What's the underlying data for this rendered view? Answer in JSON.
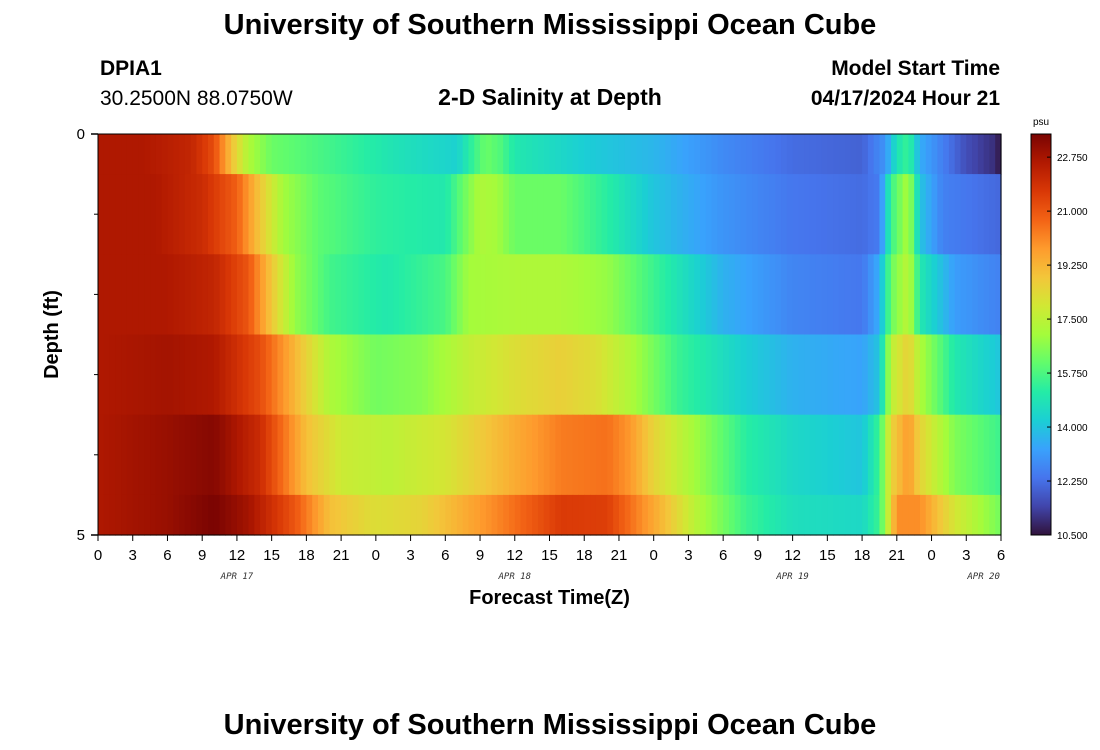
{
  "header": {
    "title": "University of Southern Mississippi Ocean Cube",
    "station_id": "DPIA1",
    "station_coords": "30.2500N  88.0750W",
    "subtitle": "2-D Salinity at Depth",
    "model_start_label": "Model Start Time",
    "model_start_value": "04/17/2024 Hour 21"
  },
  "footer": {
    "title": "University of Southern Mississippi Ocean Cube"
  },
  "chart_data": {
    "type": "heatmap",
    "title": "2-D Salinity at Depth",
    "xlabel": "Forecast Time(Z)",
    "ylabel": "Depth (ft)",
    "x_ticks": [
      "0",
      "3",
      "6",
      "9",
      "12",
      "15",
      "18",
      "21",
      "0",
      "3",
      "6",
      "9",
      "12",
      "15",
      "18",
      "21",
      "0",
      "3",
      "6",
      "9",
      "12",
      "15",
      "18",
      "21",
      "0",
      "3",
      "6"
    ],
    "x_dates": [
      {
        "label": "APR 17",
        "tick_index": 4
      },
      {
        "label": "APR 18",
        "tick_index": 12
      },
      {
        "label": "APR 19",
        "tick_index": 20
      },
      {
        "label": "APR 20",
        "tick_index": 25.5
      }
    ],
    "x_range_hours": [
      0,
      78
    ],
    "y_range_ft": [
      0,
      5
    ],
    "y_ticks": [
      "0",
      "5"
    ],
    "y_minor_ticks": [
      1,
      2,
      3,
      4
    ],
    "layers_ft": [
      "0-0.5",
      "0.5-1.5",
      "1.5-2.5",
      "2.5-3.5",
      "3.5-4.5",
      "4.5-5"
    ],
    "colorbar": {
      "unit": "psu",
      "min": 10.5,
      "max": 23.5,
      "labels": [
        "22.750",
        "21.000",
        "19.250",
        "17.500",
        "15.750",
        "14.000",
        "12.250",
        "10.500"
      ],
      "stops": [
        "#30123b",
        "#4145ab",
        "#4675ed",
        "#39a2fc",
        "#1bcfd4",
        "#24eca6",
        "#61fc6c",
        "#a4fc3b",
        "#d1e834",
        "#f3c63a",
        "#fe9b2d",
        "#f36315",
        "#d93806",
        "#b11901",
        "#7a0402"
      ]
    },
    "rows_key_hours": [
      [
        [
          0,
          22.6
        ],
        [
          4,
          22.6
        ],
        [
          8,
          22.2
        ],
        [
          10,
          21.2
        ],
        [
          11.5,
          19.0
        ],
        [
          13,
          17.2
        ],
        [
          15,
          16.2
        ],
        [
          20,
          15.6
        ],
        [
          26,
          14.8
        ],
        [
          31,
          14.3
        ],
        [
          32.5,
          15.5
        ],
        [
          33.5,
          16.2
        ],
        [
          34.8,
          15.8
        ],
        [
          36,
          15.0
        ],
        [
          42,
          14.2
        ],
        [
          48,
          13.7
        ],
        [
          54,
          12.8
        ],
        [
          60,
          12.2
        ],
        [
          66,
          12.0
        ],
        [
          68,
          13.0
        ],
        [
          69,
          14.8
        ],
        [
          70,
          15.5
        ],
        [
          71,
          13.5
        ],
        [
          75,
          11.6
        ],
        [
          77.5,
          11.0
        ],
        [
          78,
          10.5
        ]
      ],
      [
        [
          0,
          22.6
        ],
        [
          5,
          22.6
        ],
        [
          9,
          22.0
        ],
        [
          12,
          20.8
        ],
        [
          14,
          18.8
        ],
        [
          16,
          17.0
        ],
        [
          19,
          16.0
        ],
        [
          24,
          15.3
        ],
        [
          30,
          15.0
        ],
        [
          32,
          16.5
        ],
        [
          33,
          17.2
        ],
        [
          34.5,
          17.0
        ],
        [
          36,
          16.2
        ],
        [
          40,
          16.2
        ],
        [
          44,
          15.2
        ],
        [
          48,
          14.0
        ],
        [
          54,
          13.0
        ],
        [
          60,
          12.4
        ],
        [
          66,
          12.2
        ],
        [
          67.5,
          12.5
        ],
        [
          68.5,
          15.5
        ],
        [
          70,
          17.2
        ],
        [
          71,
          14.0
        ],
        [
          73,
          12.6
        ],
        [
          78,
          12.1
        ]
      ],
      [
        [
          0,
          22.6
        ],
        [
          6,
          22.6
        ],
        [
          10,
          22.2
        ],
        [
          13,
          21.0
        ],
        [
          15,
          18.8
        ],
        [
          17,
          16.8
        ],
        [
          20,
          15.6
        ],
        [
          25,
          15.0
        ],
        [
          30,
          15.7
        ],
        [
          32,
          17.0
        ],
        [
          36,
          17.2
        ],
        [
          40,
          17.2
        ],
        [
          44,
          16.8
        ],
        [
          48,
          15.5
        ],
        [
          54,
          13.6
        ],
        [
          60,
          12.7
        ],
        [
          66,
          12.4
        ],
        [
          67.5,
          13.5
        ],
        [
          68.5,
          16.2
        ],
        [
          70,
          17.5
        ],
        [
          71,
          15.0
        ],
        [
          74,
          13.2
        ],
        [
          78,
          12.6
        ]
      ],
      [
        [
          0,
          22.6
        ],
        [
          6,
          22.8
        ],
        [
          10,
          22.6
        ],
        [
          14,
          21.2
        ],
        [
          17,
          19.2
        ],
        [
          20,
          17.2
        ],
        [
          24,
          16.3
        ],
        [
          28,
          16.6
        ],
        [
          32,
          17.6
        ],
        [
          36,
          18.2
        ],
        [
          40,
          18.6
        ],
        [
          43,
          18.2
        ],
        [
          46,
          17.2
        ],
        [
          50,
          15.5
        ],
        [
          56,
          14.2
        ],
        [
          60,
          13.6
        ],
        [
          66,
          13.3
        ],
        [
          67.5,
          14.0
        ],
        [
          68.5,
          17.5
        ],
        [
          70,
          18.6
        ],
        [
          71,
          17.2
        ],
        [
          74,
          15.0
        ],
        [
          78,
          14.0
        ]
      ],
      [
        [
          0,
          22.6
        ],
        [
          6,
          23.0
        ],
        [
          10,
          23.3
        ],
        [
          14,
          22.0
        ],
        [
          18,
          19.0
        ],
        [
          21,
          17.8
        ],
        [
          25,
          17.5
        ],
        [
          30,
          18.0
        ],
        [
          35,
          19.2
        ],
        [
          40,
          20.3
        ],
        [
          44,
          20.5
        ],
        [
          46,
          19.8
        ],
        [
          48,
          18.5
        ],
        [
          52,
          16.8
        ],
        [
          56,
          15.2
        ],
        [
          60,
          14.5
        ],
        [
          66,
          14.0
        ],
        [
          67.5,
          15.5
        ],
        [
          68.5,
          18.5
        ],
        [
          70,
          19.8
        ],
        [
          71,
          18.5
        ],
        [
          74,
          16.5
        ],
        [
          78,
          15.5
        ]
      ],
      [
        [
          0,
          22.6
        ],
        [
          6,
          23.0
        ],
        [
          10,
          23.5
        ],
        [
          13,
          22.8
        ],
        [
          17,
          21.0
        ],
        [
          20,
          19.0
        ],
        [
          24,
          18.2
        ],
        [
          28,
          18.5
        ],
        [
          34,
          20.0
        ],
        [
          40,
          21.6
        ],
        [
          44,
          21.5
        ],
        [
          46,
          20.5
        ],
        [
          49,
          19.0
        ],
        [
          52,
          17.2
        ],
        [
          56,
          15.5
        ],
        [
          60,
          14.7
        ],
        [
          66,
          14.5
        ],
        [
          67.5,
          15.5
        ],
        [
          68,
          17.0
        ],
        [
          69,
          20.0
        ],
        [
          71,
          20.0
        ],
        [
          74,
          18.0
        ],
        [
          78,
          16.3
        ]
      ]
    ]
  }
}
